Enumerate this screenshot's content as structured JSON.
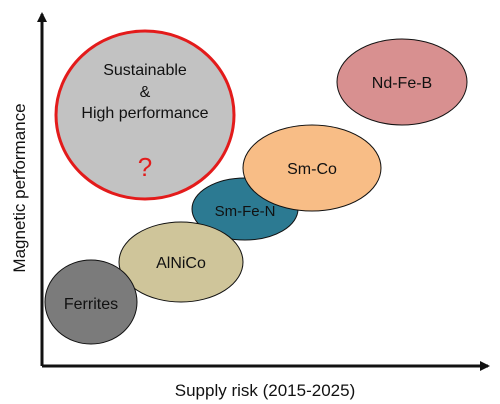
{
  "axes": {
    "y_label": "Magnetic performance",
    "x_label": "Supply risk (2015-2025)"
  },
  "target": {
    "line1": "Sustainable",
    "line2": "&",
    "line3": "High performance",
    "mark": "?",
    "border_color": "#e31b1b",
    "fill_color": "#c2c2c2"
  },
  "materials": [
    {
      "name": "Ferrites",
      "color": "#7b7b7b"
    },
    {
      "name": "AlNiCo",
      "color": "#cfc59a"
    },
    {
      "name": "Sm-Fe-N",
      "color": "#2c7a92"
    },
    {
      "name": "Sm-Co",
      "color": "#f8bd86"
    },
    {
      "name": "Nd-Fe-B",
      "color": "#d89090"
    }
  ]
}
